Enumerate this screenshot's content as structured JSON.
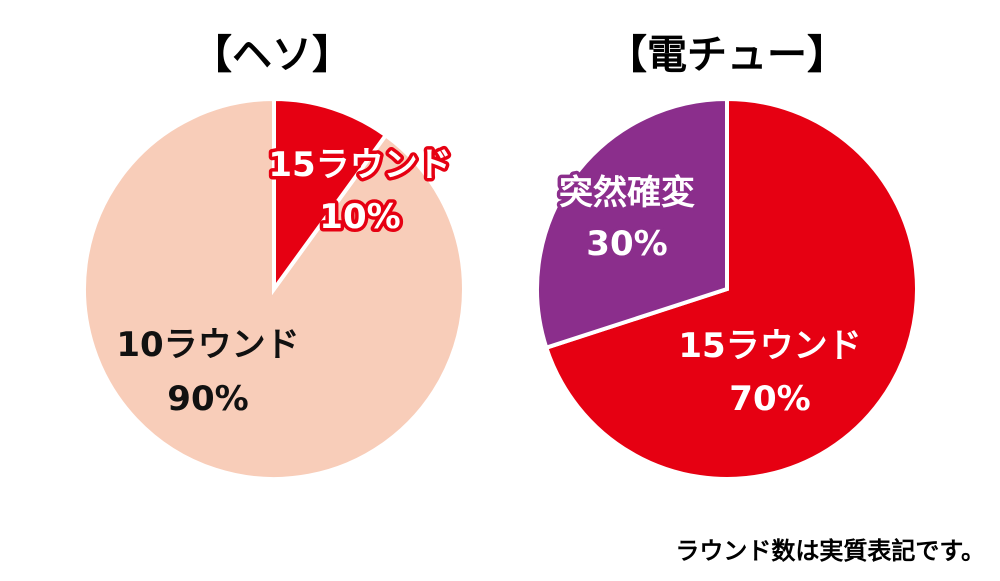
{
  "chart_data": [
    {
      "type": "pie",
      "title": "【ヘソ】",
      "slices": [
        {
          "label": "15ラウンド",
          "pct_label": "10%",
          "value": 10,
          "color": "#e60012"
        },
        {
          "label": "10ラウンド",
          "pct_label": "90%",
          "value": 90,
          "color": "#f8cdb9"
        }
      ]
    },
    {
      "type": "pie",
      "title": "【電チュー】",
      "slices": [
        {
          "label": "15ラウンド",
          "pct_label": "70%",
          "value": 70,
          "color": "#e60012"
        },
        {
          "label": "突然確変",
          "pct_label": "30%",
          "value": 30,
          "color": "#8b2e8c"
        }
      ]
    }
  ],
  "footnote": "ラウンド数は実質表記です。"
}
